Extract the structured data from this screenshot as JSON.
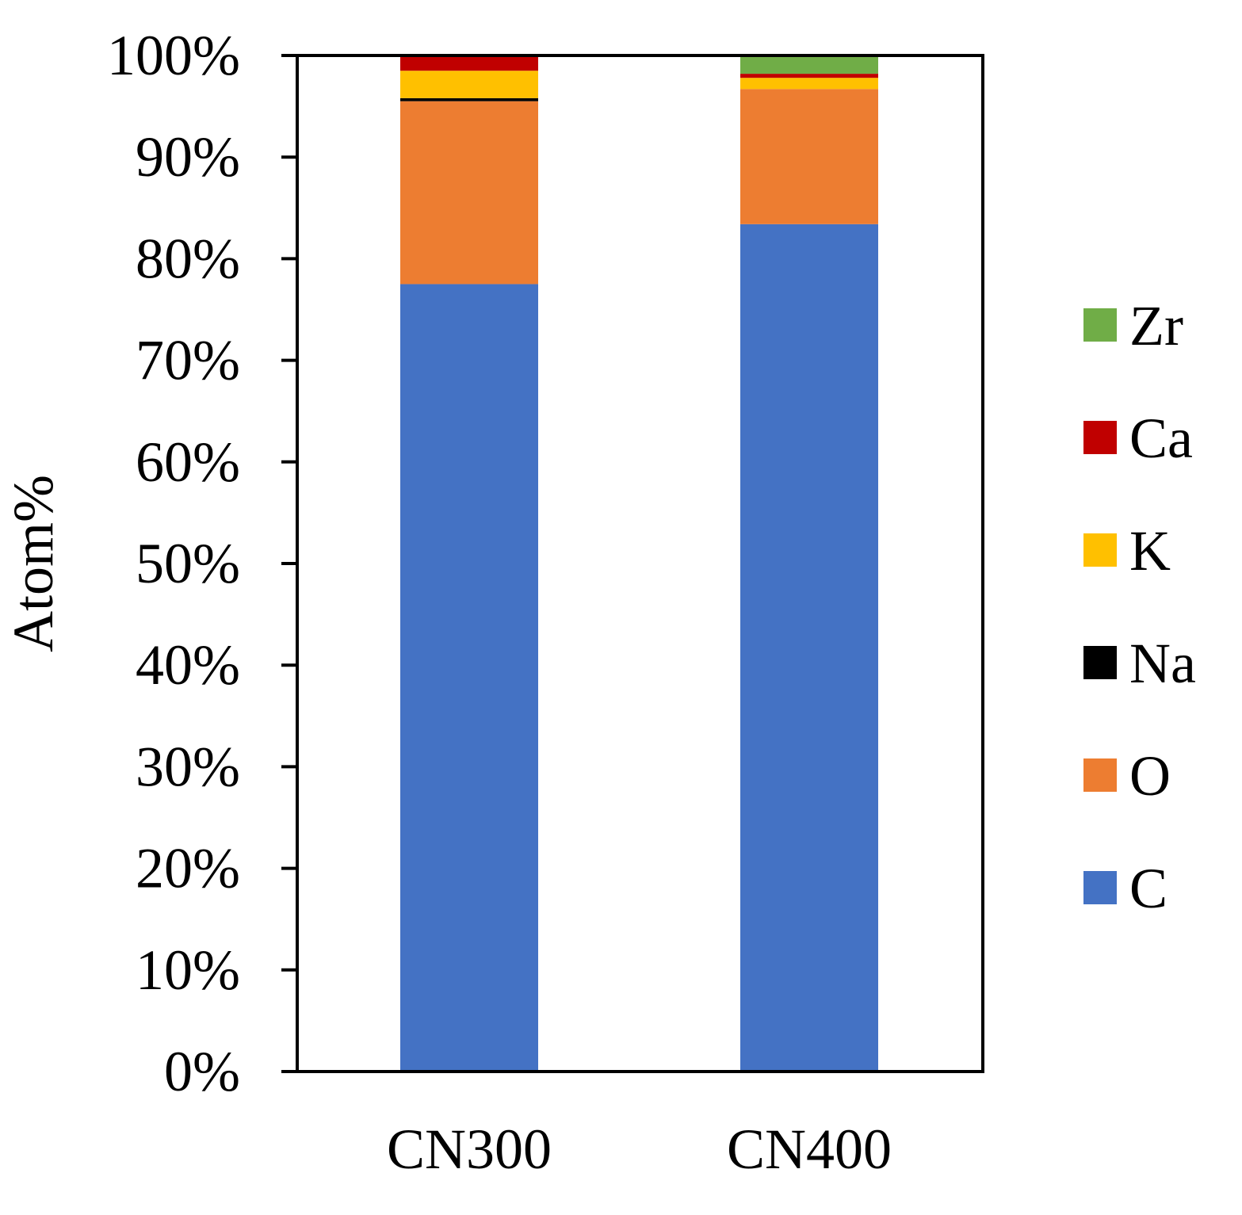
{
  "chart_data": {
    "type": "bar",
    "stacked": true,
    "title": "",
    "xlabel": "",
    "ylabel": "Atom%",
    "ylim": [
      0,
      100
    ],
    "yticks": [
      "0%",
      "10%",
      "20%",
      "30%",
      "40%",
      "50%",
      "60%",
      "70%",
      "80%",
      "90%",
      "100%"
    ],
    "ytick_values": [
      0,
      10,
      20,
      30,
      40,
      50,
      60,
      70,
      80,
      90,
      100
    ],
    "categories": [
      "CN300",
      "CN400"
    ],
    "grid": false,
    "legend_position": "right",
    "series": [
      {
        "name": "C",
        "color": "#4472C4",
        "values": [
          77.5,
          83.4
        ]
      },
      {
        "name": "O",
        "color": "#ED7D31",
        "values": [
          18.0,
          13.3
        ]
      },
      {
        "name": "Na",
        "color": "#000000",
        "values": [
          0.3,
          0.0
        ]
      },
      {
        "name": "K",
        "color": "#FFC000",
        "values": [
          2.7,
          1.1
        ]
      },
      {
        "name": "Ca",
        "color": "#C00000",
        "values": [
          1.5,
          0.4
        ]
      },
      {
        "name": "Zr",
        "color": "#70AD47",
        "values": [
          0.0,
          1.8
        ]
      }
    ],
    "legend_order": [
      "Zr",
      "Ca",
      "K",
      "Na",
      "O",
      "C"
    ]
  }
}
